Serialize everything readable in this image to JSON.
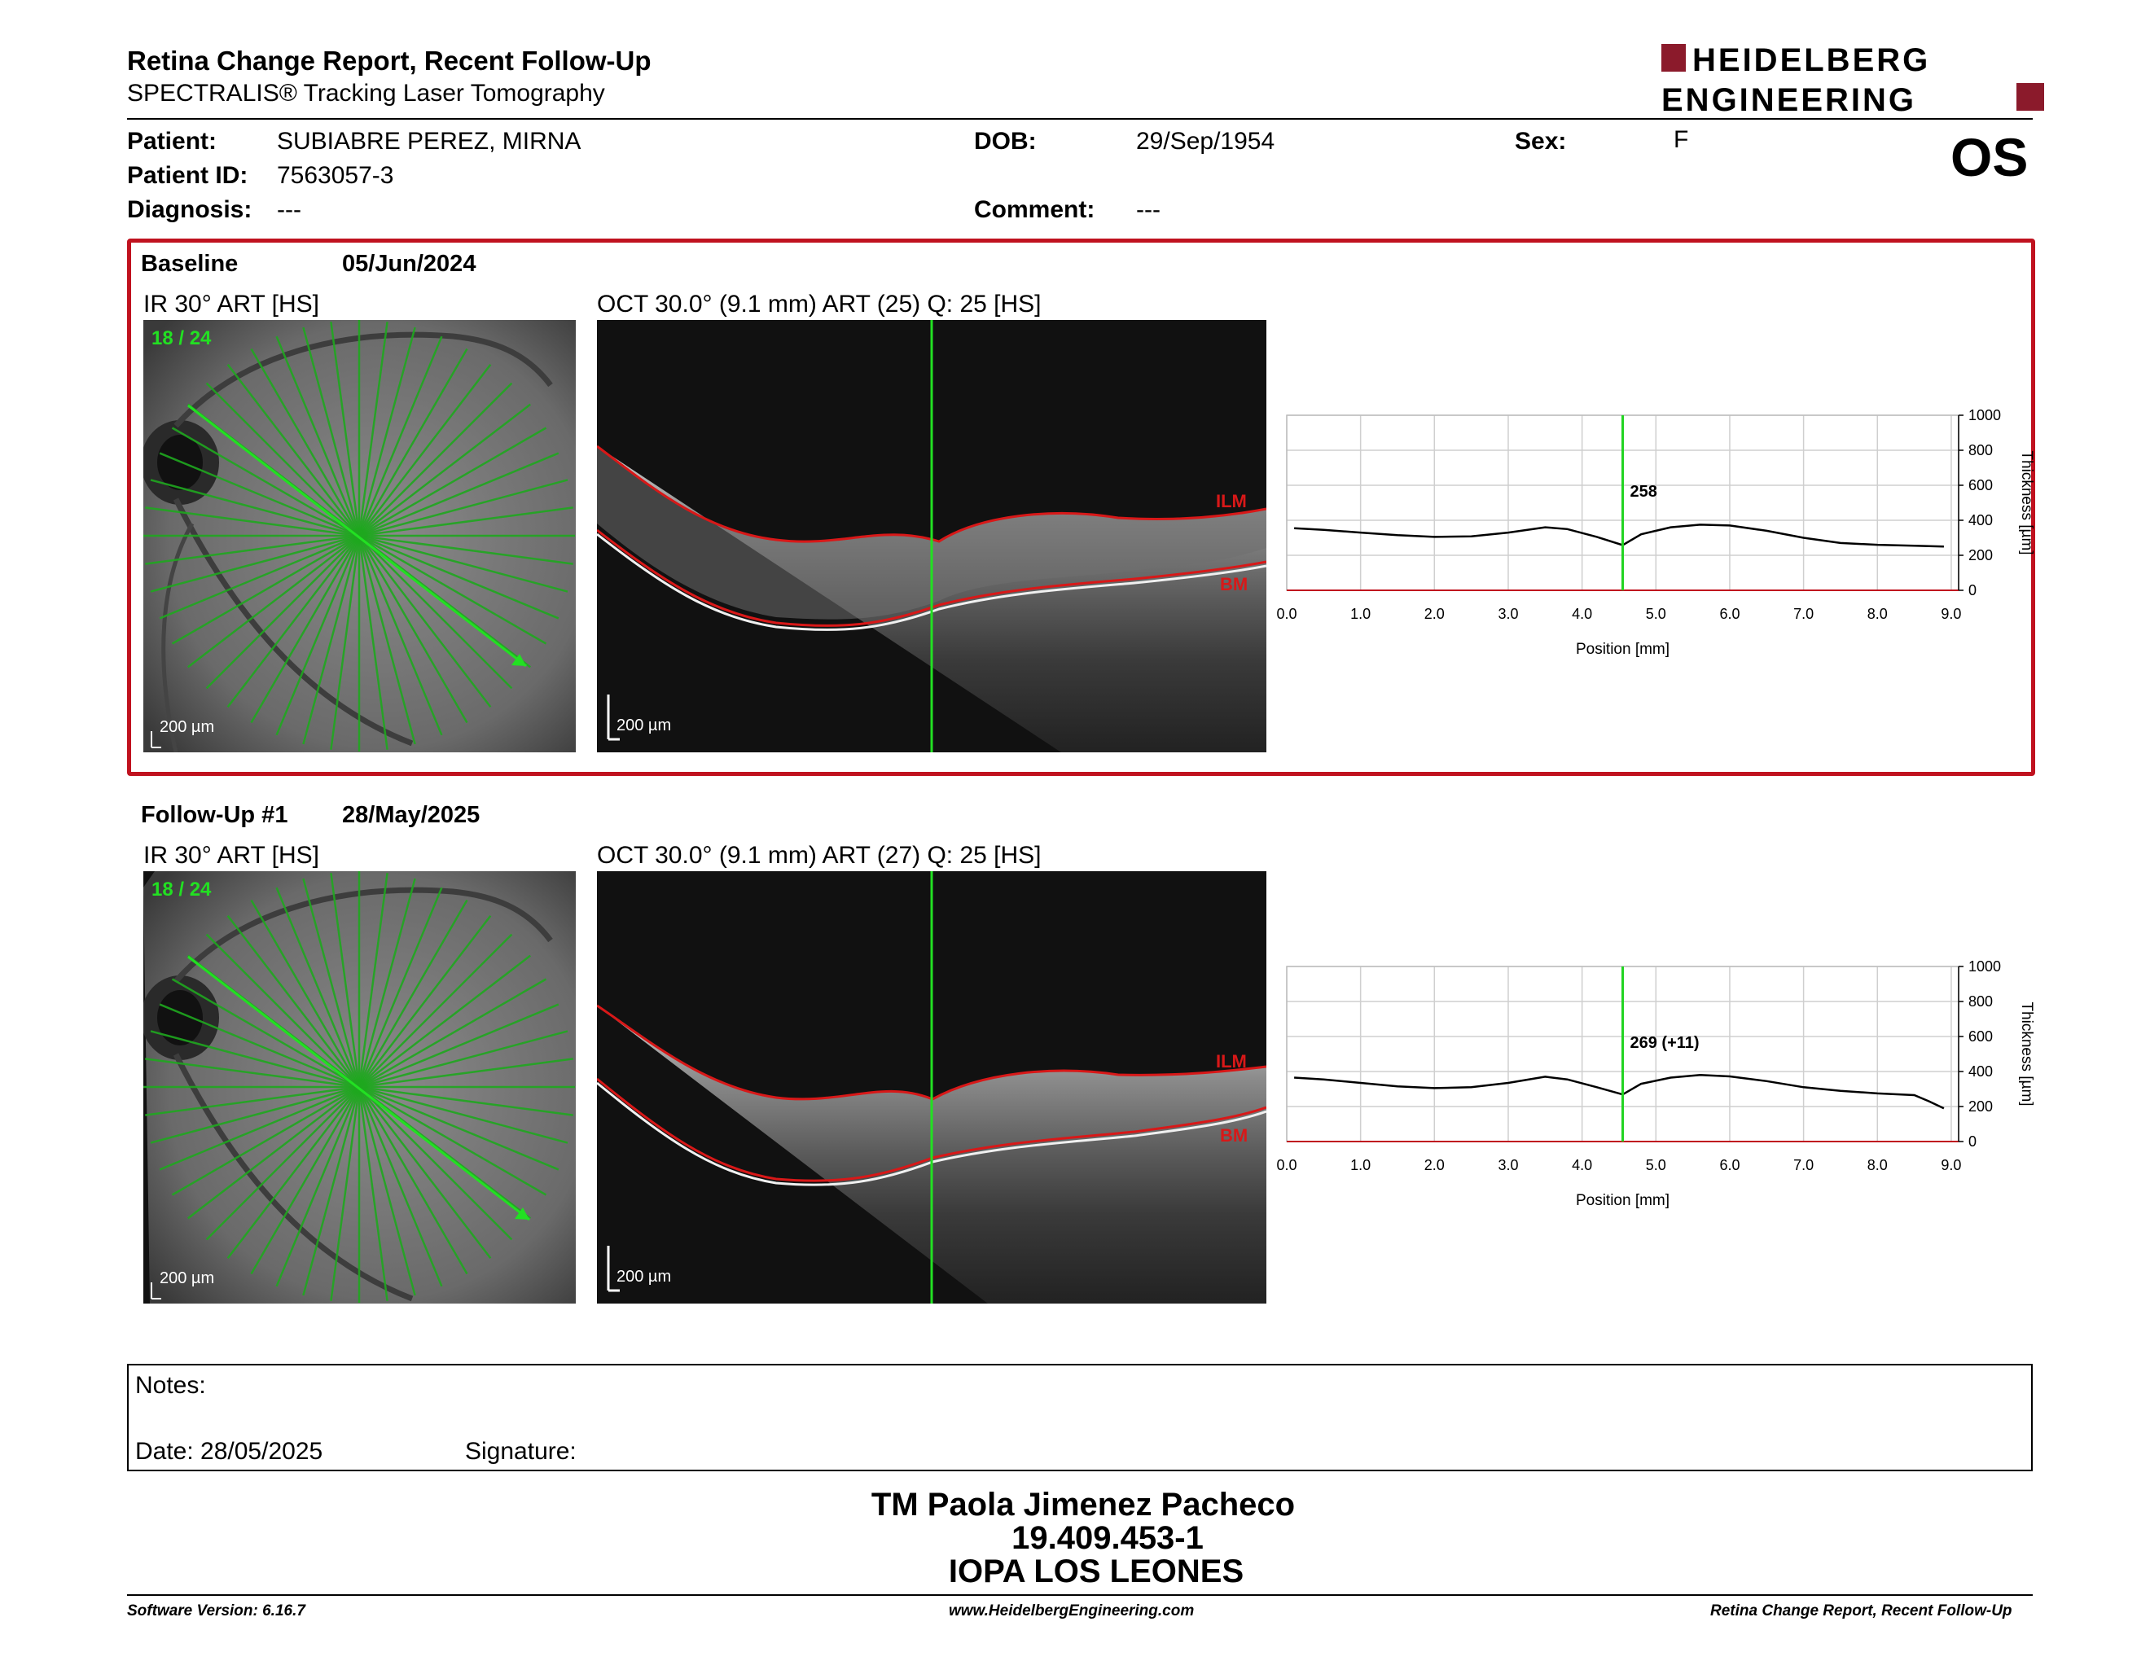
{
  "header": {
    "title": "Retina Change Report, Recent Follow-Up",
    "subtitle": "SPECTRALIS® Tracking Laser Tomography",
    "logo_line1": "HEIDELBERG",
    "logo_line2": "ENGINEERING",
    "brand_color": "#8b1a2b"
  },
  "patient": {
    "patient_label": "Patient:",
    "patient_value": "SUBIABRE PEREZ, MIRNA",
    "id_label": "Patient ID:",
    "id_value": "7563057-3",
    "diagnosis_label": "Diagnosis:",
    "diagnosis_value": "---",
    "dob_label": "DOB:",
    "dob_value": "29/Sep/1954",
    "comment_label": "Comment:",
    "comment_value": "---",
    "sex_label": "Sex:",
    "sex_value": "F",
    "eye": "OS"
  },
  "exams": [
    {
      "label": "Baseline",
      "date": "05/Jun/2024",
      "ir_label": "IR 30° ART [HS]",
      "ir_counter": "18 / 24",
      "oct_label": "OCT 30.0° (9.1 mm) ART (25) Q: 25 [HS]",
      "scale_ir": "200 µm",
      "scale_oct": "200 µm",
      "ilm": "ILM",
      "bm": "BM",
      "marker_label": "258"
    },
    {
      "label": "Follow-Up #1",
      "date": "28/May/2025",
      "ir_label": "IR 30° ART [HS]",
      "ir_counter": "18 / 24",
      "oct_label": "OCT 30.0° (9.1 mm) ART (27) Q: 25 [HS]",
      "scale_ir": "200 µm",
      "scale_oct": "200 µm",
      "ilm": "ILM",
      "bm": "BM",
      "marker_label": "269 (+11)"
    }
  ],
  "chart_data": [
    {
      "type": "line",
      "xlabel": "Position [mm]",
      "ylabel": "Thickness [µm]",
      "xlim": [
        0,
        9.1
      ],
      "ylim": [
        0,
        1000
      ],
      "xticks": [
        "0.0",
        "1.0",
        "2.0",
        "3.0",
        "4.0",
        "5.0",
        "6.0",
        "7.0",
        "8.0",
        "9.0"
      ],
      "yticks": [
        "0",
        "200",
        "400",
        "600",
        "800",
        "1000"
      ],
      "grid": true,
      "marker_x": 4.55,
      "marker_label": "258",
      "x": [
        0.1,
        0.5,
        1.0,
        1.5,
        2.0,
        2.5,
        3.0,
        3.5,
        3.8,
        4.2,
        4.55,
        4.8,
        5.2,
        5.6,
        6.0,
        6.5,
        7.0,
        7.5,
        8.0,
        8.5,
        8.9
      ],
      "values": [
        355,
        345,
        330,
        315,
        305,
        308,
        330,
        360,
        350,
        305,
        258,
        320,
        360,
        375,
        370,
        340,
        300,
        270,
        260,
        255,
        250
      ]
    },
    {
      "type": "line",
      "xlabel": "Position [mm]",
      "ylabel": "Thickness [µm]",
      "xlim": [
        0,
        9.1
      ],
      "ylim": [
        0,
        1000
      ],
      "xticks": [
        "0.0",
        "1.0",
        "2.0",
        "3.0",
        "4.0",
        "5.0",
        "6.0",
        "7.0",
        "8.0",
        "9.0"
      ],
      "yticks": [
        "0",
        "200",
        "400",
        "600",
        "800",
        "1000"
      ],
      "grid": true,
      "marker_x": 4.55,
      "marker_label": "269 (+11)",
      "x": [
        0.1,
        0.5,
        1.0,
        1.5,
        2.0,
        2.5,
        3.0,
        3.5,
        3.8,
        4.2,
        4.55,
        4.8,
        5.2,
        5.6,
        6.0,
        6.5,
        7.0,
        7.5,
        8.0,
        8.5,
        8.7,
        8.9
      ],
      "values": [
        365,
        355,
        335,
        315,
        305,
        310,
        335,
        370,
        355,
        310,
        269,
        330,
        365,
        380,
        372,
        345,
        310,
        290,
        275,
        265,
        230,
        190
      ]
    }
  ],
  "notes": {
    "notes_label": "Notes:",
    "date_label": "Date: 28/05/2025",
    "signature_label": "Signature:"
  },
  "signature": {
    "name": "TM Paola Jimenez Pacheco",
    "id": "19.409.453-1",
    "org": "IOPA LOS LEONES"
  },
  "footer": {
    "left": "Software Version: 6.16.7",
    "center": "www.HeidelbergEngineering.com",
    "right": "Retina Change Report, Recent Follow-Up"
  }
}
